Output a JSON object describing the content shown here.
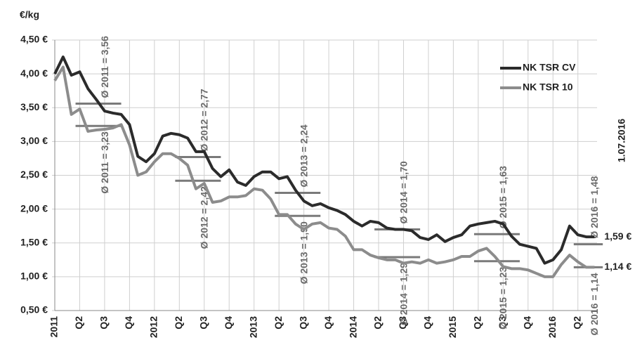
{
  "chart_data": {
    "type": "line",
    "y_label": "€/kg",
    "annotation": "1.07.2016",
    "xlim": [
      0,
      67
    ],
    "ylim": [
      0.5,
      4.5
    ],
    "yticks": [
      {
        "value": 0.5,
        "label": "0,50 €"
      },
      {
        "value": 1.0,
        "label": "1,00 €"
      },
      {
        "value": 1.5,
        "label": "1,50 €"
      },
      {
        "value": 2.0,
        "label": "2,00 €"
      },
      {
        "value": 2.5,
        "label": "2,50 €"
      },
      {
        "value": 3.0,
        "label": "3,00 €"
      },
      {
        "value": 3.5,
        "label": "3,50 €"
      },
      {
        "value": 4.0,
        "label": "4,00 €"
      },
      {
        "value": 4.5,
        "label": "4,50 €"
      }
    ],
    "xticks": [
      {
        "value": 0,
        "label": "2011"
      },
      {
        "value": 3,
        "label": "Q2"
      },
      {
        "value": 6,
        "label": "Q3"
      },
      {
        "value": 9,
        "label": "Q4"
      },
      {
        "value": 12,
        "label": "2012"
      },
      {
        "value": 15,
        "label": "Q2"
      },
      {
        "value": 18,
        "label": "Q3"
      },
      {
        "value": 21,
        "label": "Q4"
      },
      {
        "value": 24,
        "label": "2013"
      },
      {
        "value": 27,
        "label": "Q2"
      },
      {
        "value": 30,
        "label": "Q3"
      },
      {
        "value": 33,
        "label": "Q4"
      },
      {
        "value": 36,
        "label": "2014"
      },
      {
        "value": 39,
        "label": "Q2"
      },
      {
        "value": 42,
        "label": "Q3"
      },
      {
        "value": 45,
        "label": "Q4"
      },
      {
        "value": 48,
        "label": "2015"
      },
      {
        "value": 51,
        "label": "Q2"
      },
      {
        "value": 54,
        "label": "Q3"
      },
      {
        "value": 57,
        "label": "Q4"
      },
      {
        "value": 60,
        "label": "2016"
      },
      {
        "value": 63,
        "label": "Q2"
      }
    ],
    "grid": true,
    "x": [
      0,
      1,
      2,
      3,
      4,
      5,
      6,
      7,
      8,
      9,
      10,
      11,
      12,
      13,
      14,
      15,
      16,
      17,
      18,
      19,
      20,
      21,
      22,
      23,
      24,
      25,
      26,
      27,
      28,
      29,
      30,
      31,
      32,
      33,
      34,
      35,
      36,
      37,
      38,
      39,
      40,
      41,
      42,
      43,
      44,
      45,
      46,
      47,
      48,
      49,
      50,
      51,
      52,
      53,
      54,
      55,
      56,
      57,
      58,
      59,
      60,
      61,
      62,
      63,
      64,
      65
    ],
    "series": [
      {
        "name": "NK TSR CV",
        "color": "#2b2b2b",
        "end_label": "1,59 €",
        "values": [
          4.0,
          4.25,
          3.98,
          4.03,
          3.78,
          3.62,
          3.45,
          3.42,
          3.4,
          3.25,
          2.78,
          2.7,
          2.82,
          3.08,
          3.12,
          3.1,
          3.05,
          2.85,
          2.85,
          2.6,
          2.48,
          2.58,
          2.4,
          2.35,
          2.48,
          2.55,
          2.55,
          2.45,
          2.48,
          2.28,
          2.12,
          2.05,
          2.08,
          2.02,
          1.98,
          1.92,
          1.82,
          1.75,
          1.82,
          1.8,
          1.72,
          1.7,
          1.7,
          1.68,
          1.58,
          1.55,
          1.62,
          1.52,
          1.58,
          1.62,
          1.75,
          1.78,
          1.8,
          1.82,
          1.78,
          1.6,
          1.48,
          1.45,
          1.42,
          1.2,
          1.25,
          1.4,
          1.75,
          1.62,
          1.59,
          1.59
        ]
      },
      {
        "name": "NK TSR 10",
        "color": "#8c8c8c",
        "end_label": "1,14 €",
        "values": [
          3.9,
          4.1,
          3.4,
          3.48,
          3.15,
          3.17,
          3.18,
          3.2,
          3.25,
          2.95,
          2.5,
          2.55,
          2.7,
          2.82,
          2.82,
          2.75,
          2.65,
          2.3,
          2.38,
          2.1,
          2.12,
          2.18,
          2.18,
          2.2,
          2.3,
          2.28,
          2.15,
          1.92,
          1.92,
          1.78,
          1.7,
          1.78,
          1.8,
          1.72,
          1.7,
          1.6,
          1.4,
          1.4,
          1.32,
          1.28,
          1.25,
          1.25,
          1.2,
          1.22,
          1.2,
          1.25,
          1.2,
          1.22,
          1.25,
          1.3,
          1.3,
          1.38,
          1.42,
          1.3,
          1.15,
          1.12,
          1.12,
          1.1,
          1.05,
          1.0,
          1.0,
          1.18,
          1.32,
          1.22,
          1.14,
          1.14
        ]
      }
    ],
    "averages": [
      {
        "label": "Ø 2011 = 3,56",
        "value": 3.56,
        "series": 0
      },
      {
        "label": "Ø 2011 = 3,23",
        "value": 3.23,
        "series": 1
      },
      {
        "label": "Ø 2012 = 2,77",
        "value": 2.77,
        "series": 0
      },
      {
        "label": "Ø 2012 = 2,42",
        "value": 2.42,
        "series": 1
      },
      {
        "label": "Ø 2013 = 2,24",
        "value": 2.24,
        "series": 0
      },
      {
        "label": "Ø 2013 = 1,90",
        "value": 1.9,
        "series": 1
      },
      {
        "label": "Ø 2014 = 1,70",
        "value": 1.7,
        "series": 0
      },
      {
        "label": "Ø 2014 = 1,29",
        "value": 1.29,
        "series": 1
      },
      {
        "label": "Ø 2015 = 1,63",
        "value": 1.63,
        "series": 0
      },
      {
        "label": "Ø 2015 = 1,23",
        "value": 1.23,
        "series": 1
      },
      {
        "label": "Ø 2016 = 1,48",
        "value": 1.48,
        "series": 0
      },
      {
        "label": "Ø 2016 = 1,14",
        "value": 1.14,
        "series": 1
      }
    ]
  }
}
